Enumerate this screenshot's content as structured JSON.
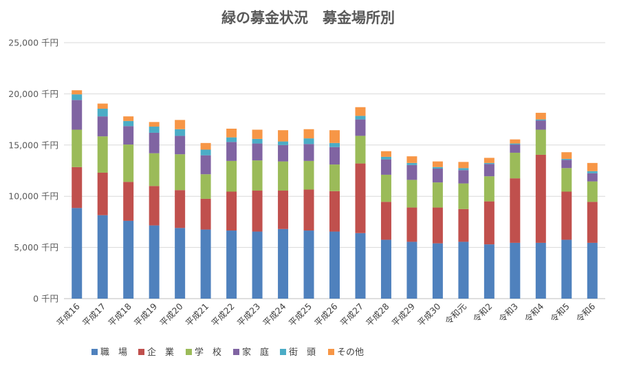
{
  "chart_data": {
    "type": "bar",
    "stacked": true,
    "title": "緑の募金状況　募金場所別",
    "ylim": [
      0,
      25000
    ],
    "yticks": [
      0,
      5000,
      10000,
      15000,
      20000,
      25000
    ],
    "ytick_labels": [
      "0 千円",
      "5,000 千円",
      "10,000 千円",
      "15,000 千円",
      "20,000 千円",
      "25,000 千円"
    ],
    "grid": true,
    "legend_position": "bottom",
    "categories": [
      "平成16",
      "平成17",
      "平成18",
      "平成19",
      "平成20",
      "平成21",
      "平成22",
      "平成23",
      "平成24",
      "平成25",
      "平成26",
      "平成27",
      "平成28",
      "平成29",
      "平成30",
      "令和元",
      "令和2",
      "令和3",
      "令和4",
      "令和5",
      "令和6"
    ],
    "series": [
      {
        "name": "職　場",
        "color": "#4f81bd",
        "values": [
          8850,
          8150,
          7600,
          7150,
          6900,
          6750,
          6650,
          6550,
          6800,
          6650,
          6550,
          6400,
          5750,
          5550,
          5400,
          5550,
          5300,
          5450,
          5450,
          5750,
          5450
        ]
      },
      {
        "name": "企　業",
        "color": "#c0504d",
        "values": [
          4000,
          4150,
          3800,
          3850,
          3700,
          3000,
          3800,
          4000,
          3750,
          4000,
          3950,
          6800,
          3700,
          3350,
          3500,
          3200,
          4200,
          6300,
          8600,
          4700,
          4000
        ]
      },
      {
        "name": "学　校",
        "color": "#9bbb59",
        "values": [
          3650,
          3550,
          3650,
          3200,
          3500,
          2400,
          3000,
          2950,
          2850,
          2800,
          2600,
          2700,
          2650,
          2700,
          2450,
          2500,
          2450,
          2500,
          2450,
          2300,
          2000
        ]
      },
      {
        "name": "家　庭",
        "color": "#8064a2",
        "values": [
          2900,
          1950,
          1800,
          2000,
          1800,
          1850,
          1850,
          1650,
          1600,
          1650,
          1700,
          1600,
          1500,
          1450,
          1350,
          1300,
          1200,
          800,
          900,
          800,
          800
        ]
      },
      {
        "name": "街　頭",
        "color": "#4bacc6",
        "values": [
          550,
          750,
          500,
          600,
          650,
          550,
          450,
          450,
          350,
          550,
          400,
          350,
          250,
          200,
          150,
          200,
          100,
          100,
          100,
          100,
          200
        ]
      },
      {
        "name": "その他",
        "color": "#f79646",
        "values": [
          400,
          500,
          450,
          450,
          900,
          650,
          850,
          900,
          1100,
          900,
          1250,
          850,
          550,
          650,
          550,
          600,
          500,
          400,
          650,
          650,
          800
        ]
      }
    ]
  }
}
